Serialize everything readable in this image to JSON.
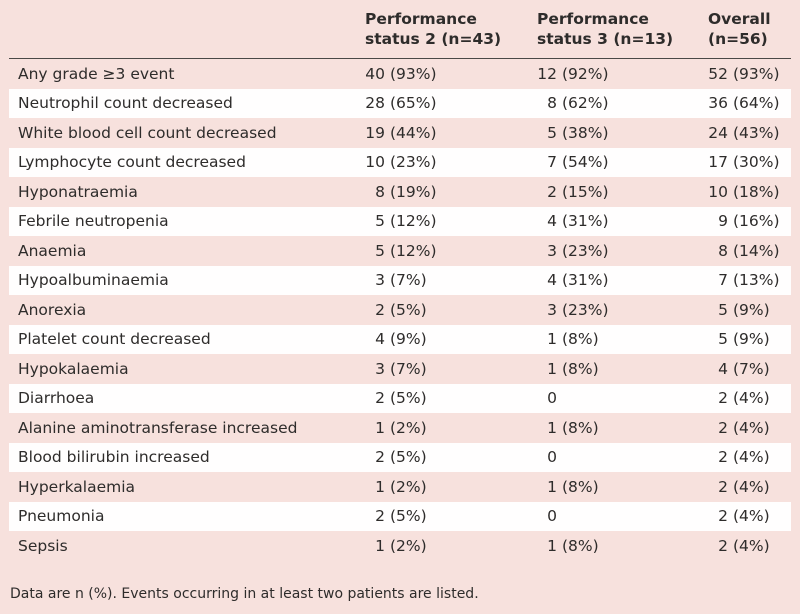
{
  "page": {
    "background_color": "#f7e1dd",
    "stripe_color": "#fffefe",
    "rule_color": "#4a4846",
    "text_color": "#2e2c2b"
  },
  "table": {
    "columns": [
      {
        "line1": "Performance",
        "line2": "status 2 (n=43)"
      },
      {
        "line1": "Performance",
        "line2": "status 3 (n=13)"
      },
      {
        "line1": "Overall",
        "line2": "(n=56)"
      }
    ],
    "rows": [
      {
        "label": "Any grade ≥3 event",
        "ps2": {
          "n": "40",
          "p": "(93%)"
        },
        "ps3": {
          "n": "12",
          "p": "(92%)"
        },
        "overall": {
          "n": "52",
          "p": "(93%)"
        }
      },
      {
        "label": "Neutrophil count decreased",
        "ps2": {
          "n": "28",
          "p": "(65%)"
        },
        "ps3": {
          "n": "8",
          "p": "(62%)"
        },
        "overall": {
          "n": "36",
          "p": "(64%)"
        }
      },
      {
        "label": "White blood cell count decreased",
        "ps2": {
          "n": "19",
          "p": "(44%)"
        },
        "ps3": {
          "n": "5",
          "p": "(38%)"
        },
        "overall": {
          "n": "24",
          "p": "(43%)"
        }
      },
      {
        "label": "Lymphocyte count decreased",
        "ps2": {
          "n": "10",
          "p": "(23%)"
        },
        "ps3": {
          "n": "7",
          "p": "(54%)"
        },
        "overall": {
          "n": "17",
          "p": "(30%)"
        }
      },
      {
        "label": "Hyponatraemia",
        "ps2": {
          "n": "8",
          "p": "(19%)"
        },
        "ps3": {
          "n": "2",
          "p": "(15%)"
        },
        "overall": {
          "n": "10",
          "p": "(18%)"
        }
      },
      {
        "label": "Febrile neutropenia",
        "ps2": {
          "n": "5",
          "p": "(12%)"
        },
        "ps3": {
          "n": "4",
          "p": "(31%)"
        },
        "overall": {
          "n": "9",
          "p": "(16%)"
        }
      },
      {
        "label": "Anaemia",
        "ps2": {
          "n": "5",
          "p": "(12%)"
        },
        "ps3": {
          "n": "3",
          "p": "(23%)"
        },
        "overall": {
          "n": "8",
          "p": "(14%)"
        }
      },
      {
        "label": "Hypoalbuminaemia",
        "ps2": {
          "n": "3",
          "p": "(7%)"
        },
        "ps3": {
          "n": "4",
          "p": "(31%)"
        },
        "overall": {
          "n": "7",
          "p": "(13%)"
        }
      },
      {
        "label": "Anorexia",
        "ps2": {
          "n": "2",
          "p": "(5%)"
        },
        "ps3": {
          "n": "3",
          "p": "(23%)"
        },
        "overall": {
          "n": "5",
          "p": "(9%)"
        }
      },
      {
        "label": "Platelet count decreased",
        "ps2": {
          "n": "4",
          "p": "(9%)"
        },
        "ps3": {
          "n": "1",
          "p": "(8%)"
        },
        "overall": {
          "n": "5",
          "p": "(9%)"
        }
      },
      {
        "label": "Hypokalaemia",
        "ps2": {
          "n": "3",
          "p": "(7%)"
        },
        "ps3": {
          "n": "1",
          "p": "(8%)"
        },
        "overall": {
          "n": "4",
          "p": "(7%)"
        }
      },
      {
        "label": "Diarrhoea",
        "ps2": {
          "n": "2",
          "p": "(5%)"
        },
        "ps3": {
          "n": "0",
          "p": ""
        },
        "overall": {
          "n": "2",
          "p": "(4%)"
        }
      },
      {
        "label": "Alanine aminotransferase increased",
        "ps2": {
          "n": "1",
          "p": "(2%)"
        },
        "ps3": {
          "n": "1",
          "p": "(8%)"
        },
        "overall": {
          "n": "2",
          "p": "(4%)"
        }
      },
      {
        "label": "Blood bilirubin increased",
        "ps2": {
          "n": "2",
          "p": "(5%)"
        },
        "ps3": {
          "n": "0",
          "p": ""
        },
        "overall": {
          "n": "2",
          "p": "(4%)"
        }
      },
      {
        "label": "Hyperkalaemia",
        "ps2": {
          "n": "1",
          "p": "(2%)"
        },
        "ps3": {
          "n": "1",
          "p": "(8%)"
        },
        "overall": {
          "n": "2",
          "p": "(4%)"
        }
      },
      {
        "label": "Pneumonia",
        "ps2": {
          "n": "2",
          "p": "(5%)"
        },
        "ps3": {
          "n": "0",
          "p": ""
        },
        "overall": {
          "n": "2",
          "p": "(4%)"
        }
      },
      {
        "label": "Sepsis",
        "ps2": {
          "n": "1",
          "p": "(2%)"
        },
        "ps3": {
          "n": "1",
          "p": "(8%)"
        },
        "overall": {
          "n": "2",
          "p": "(4%)"
        }
      }
    ],
    "footnote": "Data are n (%). Events occurring in at least two patients are listed."
  }
}
